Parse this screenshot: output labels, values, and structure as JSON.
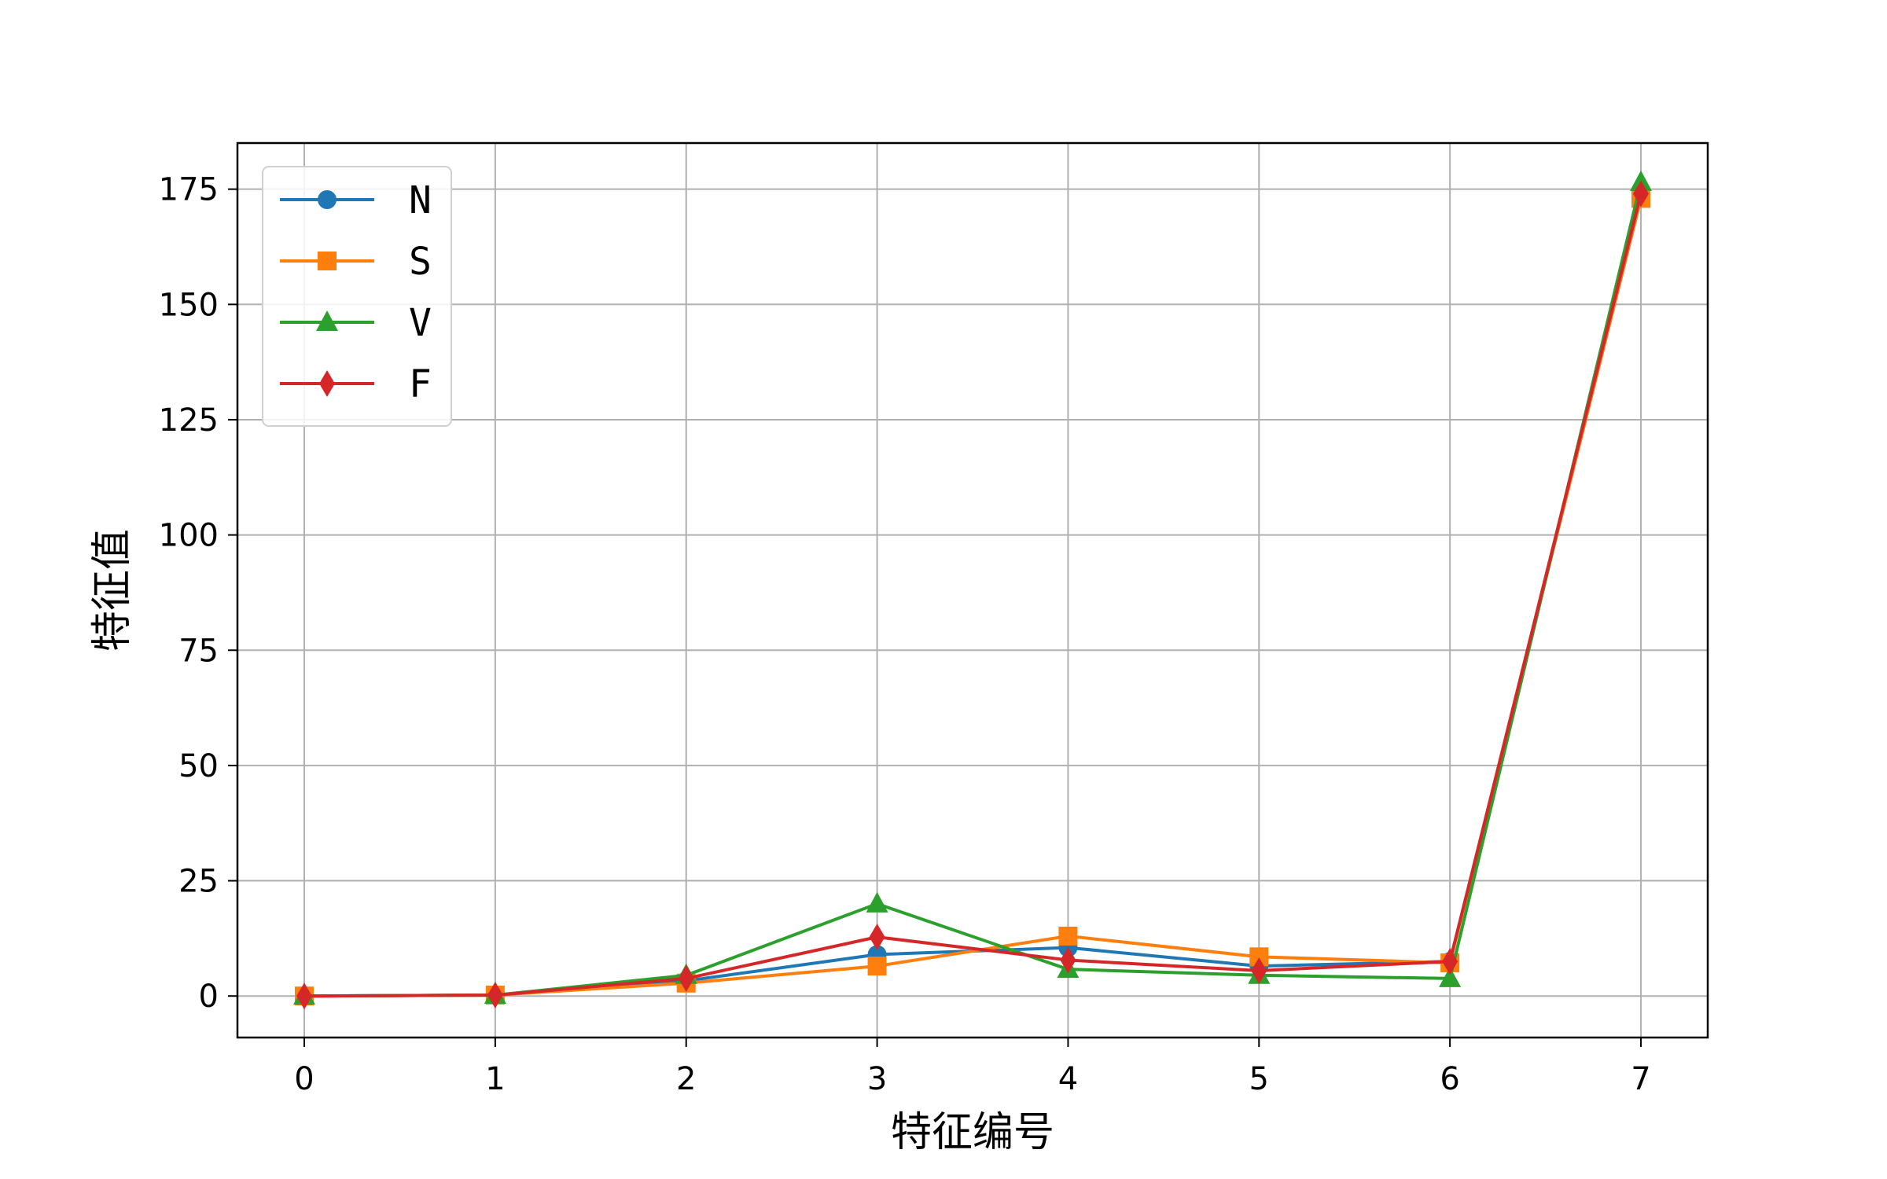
{
  "chart_data": {
    "type": "line",
    "title": "",
    "xlabel": "特征编号",
    "ylabel": "特征值",
    "x": [
      0,
      1,
      2,
      3,
      4,
      5,
      6,
      7
    ],
    "xlim": [
      -0.35,
      7.35
    ],
    "ylim": [
      -9,
      185
    ],
    "xticks": [
      0,
      1,
      2,
      3,
      4,
      5,
      6,
      7
    ],
    "yticks": [
      0,
      25,
      50,
      75,
      100,
      125,
      150,
      175
    ],
    "grid": true,
    "legend_position": "top-left",
    "series": [
      {
        "name": "N",
        "color": "#1f77b4",
        "marker": "circle",
        "values": [
          0,
          0.2,
          3.3,
          9,
          10.5,
          6.5,
          7.5,
          173
        ]
      },
      {
        "name": "S",
        "color": "#ff7f0e",
        "marker": "square",
        "values": [
          0,
          0.2,
          2.8,
          6.5,
          13,
          8.5,
          7.2,
          173
        ]
      },
      {
        "name": "V",
        "color": "#2ca02c",
        "marker": "triangle",
        "values": [
          0,
          0.2,
          4.5,
          20,
          5.8,
          4.5,
          3.8,
          176.5
        ]
      },
      {
        "name": "F",
        "color": "#d62728",
        "marker": "diamond",
        "values": [
          0,
          0.2,
          3.8,
          12.8,
          7.8,
          5.5,
          7.5,
          174
        ]
      }
    ]
  }
}
